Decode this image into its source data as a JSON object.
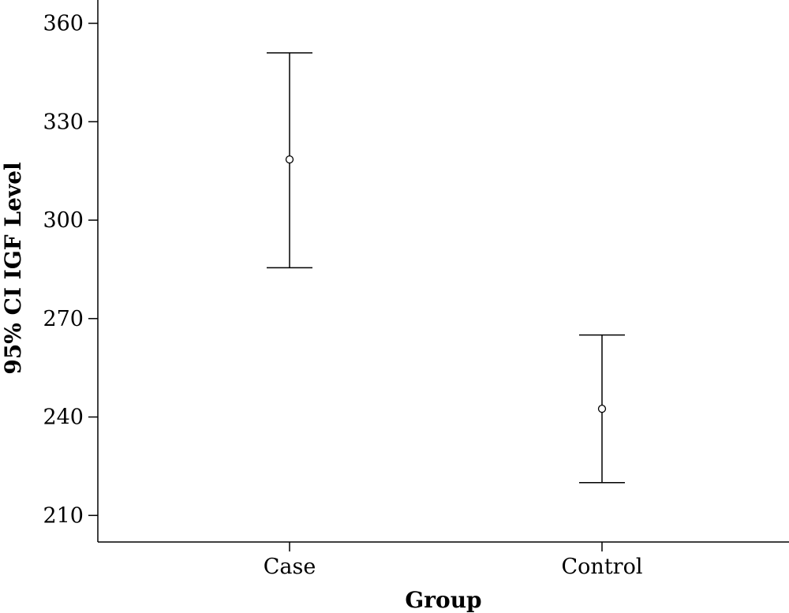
{
  "chart_data": {
    "type": "errorbar",
    "xlabel": "Group",
    "ylabel": "95% CI IGF Level",
    "categories": [
      "Case",
      "Control"
    ],
    "points": [
      {
        "category": "Case",
        "mean": 318.5,
        "lower": 285.5,
        "upper": 351
      },
      {
        "category": "Control",
        "mean": 242.5,
        "lower": 220,
        "upper": 265
      }
    ],
    "yticks": [
      210,
      240,
      270,
      300,
      330,
      360
    ],
    "ylim": [
      201.9,
      367.1
    ],
    "grid": false,
    "legend": "none",
    "colors": {
      "line": "#000000",
      "background": "#ffffff"
    }
  }
}
